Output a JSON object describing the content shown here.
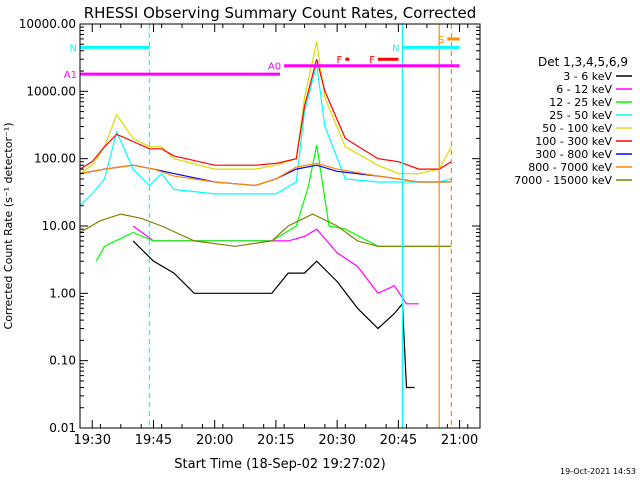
{
  "chart_data": {
    "type": "line",
    "title": "RHESSI Observing Summary Count Rates, Corrected",
    "xlabel": "Start Time (18-Sep-02 19:27:02)",
    "ylabel": "Corrected Count Rate (s⁻¹ detector⁻¹)",
    "yscale": "log",
    "ylim": [
      0.01,
      10000
    ],
    "y_ticks": [
      "10000.00",
      "1000.00",
      "100.00",
      "10.00",
      "1.00",
      "0.10",
      "0.01"
    ],
    "xlim": [
      "19:27",
      "21:05"
    ],
    "x_ticks": [
      "19:30",
      "19:45",
      "20:00",
      "20:15",
      "20:30",
      "20:45",
      "21:00"
    ],
    "legend_title": "Det 1,3,4,5,6,9",
    "legend_position": "right",
    "grid": false,
    "footer": "19-Oct-2021 14:53",
    "series": [
      {
        "name": "3 - 6 keV",
        "color": "#000000",
        "x": [
          "19:40",
          "19:45",
          "19:50",
          "19:55",
          "20:05",
          "20:14",
          "20:18",
          "20:22",
          "20:25",
          "20:30",
          "20:35",
          "20:40",
          "20:44",
          "20:46",
          "20:47",
          "20:49"
        ],
        "y": [
          6,
          3,
          2,
          1,
          1,
          1,
          2,
          2,
          3,
          1.5,
          0.6,
          0.3,
          0.5,
          0.7,
          0.04,
          0.04
        ]
      },
      {
        "name": "6 - 12 keV",
        "color": "#ff00ff",
        "x": [
          "19:40",
          "19:45",
          "19:55",
          "20:05",
          "20:14",
          "20:18",
          "20:22",
          "20:25",
          "20:30",
          "20:35",
          "20:40",
          "20:44",
          "20:47",
          "20:50"
        ],
        "y": [
          10,
          6,
          6,
          6,
          6,
          6,
          7,
          9,
          4,
          2.5,
          1,
          1.3,
          0.7,
          0.7
        ]
      },
      {
        "name": "12 - 25 keV",
        "color": "#00ff00",
        "x": [
          "19:31",
          "19:33",
          "19:40",
          "19:45",
          "19:55",
          "20:05",
          "20:14",
          "20:20",
          "20:23",
          "20:25",
          "20:28",
          "20:32",
          "20:40",
          "20:50",
          "20:58"
        ],
        "y": [
          3,
          5,
          8,
          6,
          6,
          6,
          6,
          10,
          40,
          160,
          10,
          9,
          5,
          5,
          5
        ]
      },
      {
        "name": "25 - 50 keV",
        "color": "#00ffff",
        "x": [
          "19:27",
          "19:30",
          "19:33",
          "19:36",
          "19:40",
          "19:44",
          "19:47",
          "19:50",
          "20:00",
          "20:10",
          "20:15",
          "20:20",
          "20:22",
          "20:25",
          "20:27",
          "20:32",
          "20:40",
          "20:45",
          "20:50",
          "20:55",
          "20:58"
        ],
        "y": [
          20,
          30,
          50,
          250,
          70,
          40,
          60,
          35,
          30,
          30,
          30,
          45,
          500,
          2500,
          300,
          50,
          45,
          45,
          45,
          45,
          50
        ]
      },
      {
        "name": "50 - 100 keV",
        "color": "#dddd00",
        "x": [
          "19:27",
          "19:30",
          "19:33",
          "19:36",
          "19:40",
          "19:44",
          "19:47",
          "19:50",
          "20:00",
          "20:10",
          "20:15",
          "20:20",
          "20:22",
          "20:25",
          "20:27",
          "20:32",
          "20:40",
          "20:45",
          "20:50",
          "20:55",
          "20:58"
        ],
        "y": [
          60,
          80,
          150,
          450,
          200,
          150,
          150,
          100,
          70,
          70,
          80,
          100,
          800,
          5500,
          800,
          150,
          80,
          60,
          60,
          70,
          150
        ]
      },
      {
        "name": "100 - 300 keV",
        "color": "#ff0000",
        "x": [
          "19:27",
          "19:30",
          "19:33",
          "19:36",
          "19:40",
          "19:44",
          "19:47",
          "19:50",
          "20:00",
          "20:10",
          "20:15",
          "20:20",
          "20:22",
          "20:25",
          "20:27",
          "20:32",
          "20:40",
          "20:45",
          "20:50",
          "20:55",
          "20:58"
        ],
        "y": [
          70,
          90,
          150,
          230,
          180,
          140,
          140,
          110,
          80,
          80,
          85,
          100,
          600,
          3000,
          1000,
          200,
          100,
          90,
          70,
          70,
          90
        ]
      },
      {
        "name": "300 - 800 keV",
        "color": "#0000ff",
        "x": [
          "19:27",
          "19:33",
          "19:40",
          "19:45",
          "19:50",
          "20:00",
          "20:10",
          "20:15",
          "20:20",
          "20:25",
          "20:30",
          "20:40",
          "20:45",
          "20:50",
          "20:58"
        ],
        "y": [
          60,
          70,
          80,
          70,
          60,
          45,
          40,
          50,
          70,
          80,
          65,
          55,
          50,
          45,
          45
        ]
      },
      {
        "name": "800 - 7000 keV",
        "color": "#ff8c00",
        "x": [
          "19:27",
          "19:33",
          "19:40",
          "19:45",
          "19:50",
          "20:00",
          "20:10",
          "20:15",
          "20:20",
          "20:25",
          "20:30",
          "20:40",
          "20:45",
          "20:50",
          "20:58"
        ],
        "y": [
          60,
          70,
          80,
          70,
          55,
          45,
          40,
          50,
          75,
          85,
          70,
          55,
          50,
          45,
          45
        ]
      },
      {
        "name": "7000 - 15000 keV",
        "color": "#808000",
        "x": [
          "19:27",
          "19:32",
          "19:37",
          "19:42",
          "19:47",
          "19:55",
          "20:05",
          "20:14",
          "20:18",
          "20:24",
          "20:30",
          "20:35",
          "20:40",
          "20:50",
          "20:58"
        ],
        "y": [
          8,
          12,
          15,
          13,
          10,
          6,
          5,
          6,
          10,
          15,
          10,
          6,
          5,
          5,
          5
        ]
      }
    ],
    "annotations": {
      "vlines": [
        {
          "x": "19:44",
          "color": "#00ffff",
          "style": "dashed"
        },
        {
          "x": "20:46",
          "color": "#00ffff",
          "style": "solid"
        },
        {
          "x": "20:55",
          "color": "#ff8c00",
          "style": "solid"
        },
        {
          "x": "20:58",
          "color": "#ff8c00",
          "style": "dashed"
        }
      ],
      "bars": [
        {
          "label": "N",
          "color": "#00ffff",
          "x0": "19:27",
          "x1": "19:44",
          "y": 4500
        },
        {
          "label": "N",
          "color": "#00ffff",
          "x0": "20:46",
          "x1": "21:00",
          "y": 4500
        },
        {
          "label": "A1",
          "color": "#ff00ff",
          "x0": "19:27",
          "x1": "20:16",
          "y": 1800
        },
        {
          "label": "A0",
          "color": "#ff00ff",
          "x0": "20:17",
          "x1": "21:00",
          "y": 2400
        },
        {
          "label": "F",
          "color": "#ff0000",
          "x0": "20:32",
          "x1": "20:33",
          "y": 3000
        },
        {
          "label": "F",
          "color": "#ff0000",
          "x0": "20:40",
          "x1": "20:45",
          "y": 3000
        },
        {
          "label": "S",
          "color": "#ff8c00",
          "x0": "20:57",
          "x1": "21:00",
          "y": 6000
        }
      ],
      "labels": [
        "N",
        "A0",
        "A1",
        "F",
        "S"
      ]
    }
  }
}
